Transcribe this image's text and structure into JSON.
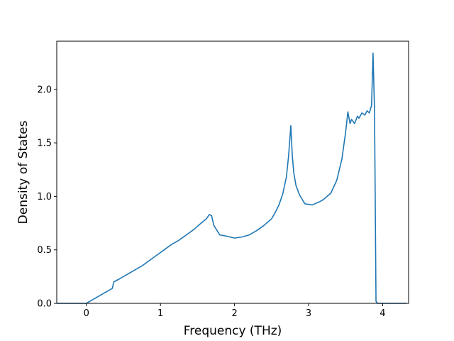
{
  "chart_data": {
    "type": "line",
    "title": "",
    "xlabel": "Frequency (THz)",
    "ylabel": "Density of States",
    "xlim": [
      -0.4,
      4.35
    ],
    "ylim": [
      0,
      2.45
    ],
    "xticks": [
      0,
      1,
      2,
      3,
      4
    ],
    "xtick_labels": [
      "0",
      "1",
      "2",
      "3",
      "4"
    ],
    "yticks": [
      0.0,
      0.5,
      1.0,
      1.5,
      2.0
    ],
    "ytick_labels": [
      "0.0",
      "0.5",
      "1.0",
      "1.5",
      "2.0"
    ],
    "grid": false,
    "legend": "none",
    "series": [
      {
        "color": "#1f77b4",
        "x": [
          -0.4,
          -0.1,
          0.0,
          0.05,
          0.15,
          0.25,
          0.35,
          0.37,
          0.45,
          0.55,
          0.65,
          0.75,
          0.85,
          0.95,
          1.05,
          1.15,
          1.25,
          1.35,
          1.45,
          1.55,
          1.62,
          1.66,
          1.69,
          1.72,
          1.8,
          1.88,
          2.0,
          2.1,
          2.2,
          2.3,
          2.4,
          2.5,
          2.55,
          2.6,
          2.65,
          2.7,
          2.73,
          2.76,
          2.78,
          2.8,
          2.83,
          2.88,
          2.95,
          3.05,
          3.15,
          3.2,
          3.3,
          3.38,
          3.45,
          3.5,
          3.53,
          3.56,
          3.58,
          3.62,
          3.66,
          3.68,
          3.72,
          3.76,
          3.79,
          3.82,
          3.85,
          3.87,
          3.89,
          3.91,
          3.93,
          4.0,
          4.1,
          4.2,
          4.32
        ],
        "y": [
          0.0,
          0.0,
          0.0,
          0.02,
          0.06,
          0.1,
          0.14,
          0.2,
          0.23,
          0.27,
          0.31,
          0.35,
          0.4,
          0.45,
          0.5,
          0.55,
          0.59,
          0.64,
          0.69,
          0.75,
          0.79,
          0.83,
          0.82,
          0.73,
          0.64,
          0.63,
          0.61,
          0.62,
          0.64,
          0.68,
          0.73,
          0.79,
          0.85,
          0.92,
          1.02,
          1.18,
          1.38,
          1.66,
          1.38,
          1.22,
          1.1,
          1.01,
          0.93,
          0.92,
          0.95,
          0.97,
          1.03,
          1.15,
          1.35,
          1.6,
          1.79,
          1.68,
          1.72,
          1.68,
          1.75,
          1.73,
          1.78,
          1.76,
          1.8,
          1.78,
          1.85,
          2.34,
          1.8,
          0.02,
          0.0,
          0.0,
          0.0,
          0.0,
          0.0
        ]
      }
    ]
  }
}
